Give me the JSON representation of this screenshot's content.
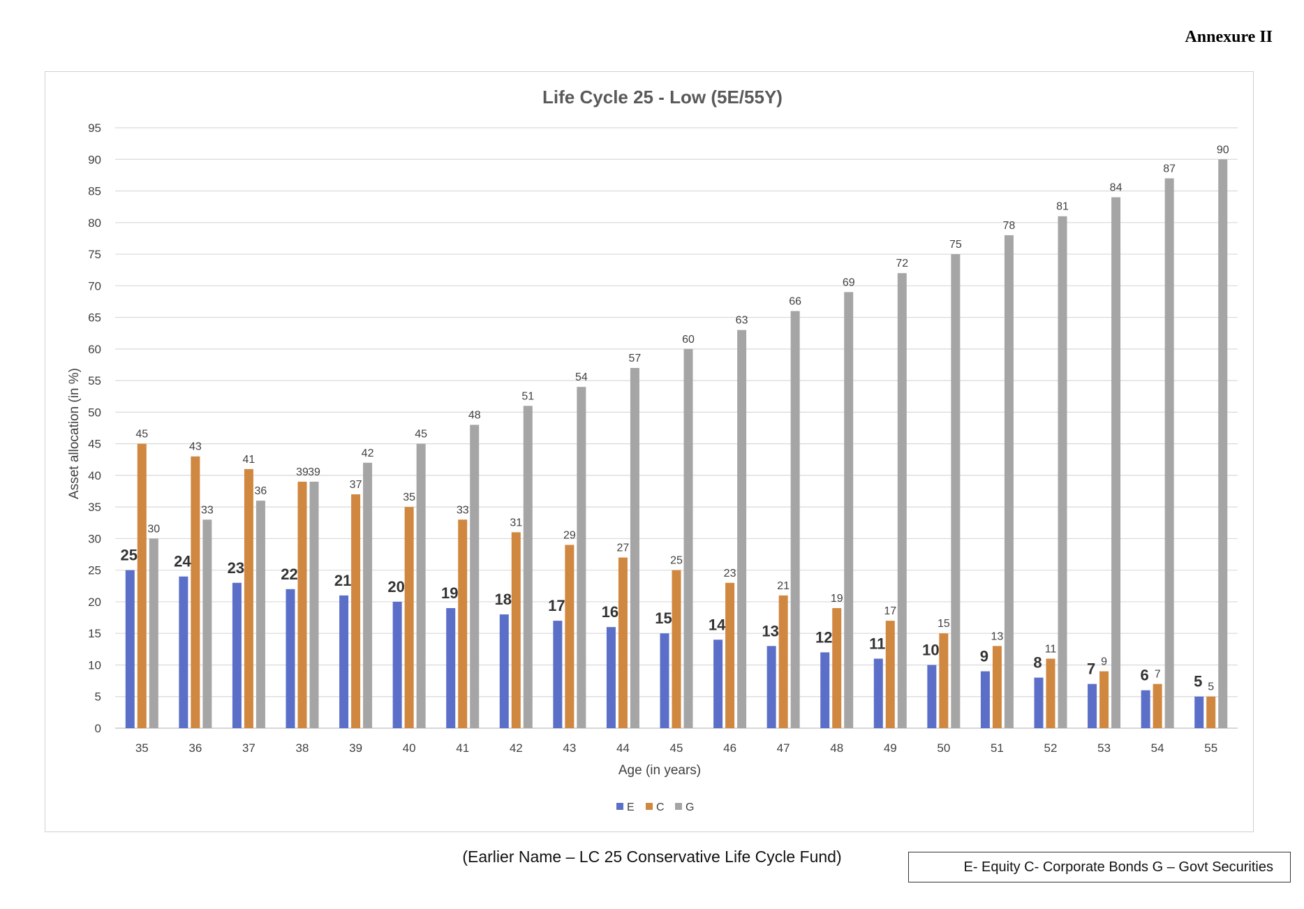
{
  "annexure": "Annexure II",
  "caption": "(Earlier Name – LC 25 Conservative Life Cycle Fund)",
  "key_note": "E- Equity C- Corporate Bonds G – Govt Securities",
  "colors": {
    "E": "#5b6fc8",
    "C": "#d0873f",
    "G": "#a5a5a5",
    "grid": "#d9d9d9",
    "text": "#404040",
    "title": "#595959"
  },
  "chart_data": {
    "type": "bar",
    "title": "Life Cycle 25 - Low (5E/55Y)",
    "xlabel": "Age (in years)",
    "ylabel": "Asset allocation (in %)",
    "ylim": [
      0,
      95
    ],
    "ytick_step": 5,
    "yticks": [
      "0",
      "5",
      "10",
      "15",
      "20",
      "25",
      "30",
      "35",
      "40",
      "45",
      "50",
      "55",
      "60",
      "65",
      "70",
      "75",
      "80",
      "85",
      "90",
      "95"
    ],
    "grid": true,
    "legend_position": "bottom",
    "categories": [
      "35",
      "36",
      "37",
      "38",
      "39",
      "40",
      "41",
      "42",
      "43",
      "44",
      "45",
      "46",
      "47",
      "48",
      "49",
      "50",
      "51",
      "52",
      "53",
      "54",
      "55"
    ],
    "series": [
      {
        "name": "E",
        "values": [
          25,
          24,
          23,
          22,
          21,
          20,
          19,
          18,
          17,
          16,
          15,
          14,
          13,
          12,
          11,
          10,
          9,
          8,
          7,
          6,
          5
        ]
      },
      {
        "name": "C",
        "values": [
          45,
          43,
          41,
          39,
          37,
          35,
          33,
          31,
          29,
          27,
          25,
          23,
          21,
          19,
          17,
          15,
          13,
          11,
          9,
          7,
          5
        ]
      },
      {
        "name": "G",
        "values": [
          30,
          33,
          36,
          39,
          42,
          45,
          48,
          51,
          54,
          57,
          60,
          63,
          66,
          69,
          72,
          75,
          78,
          81,
          84,
          87,
          90
        ]
      }
    ]
  }
}
